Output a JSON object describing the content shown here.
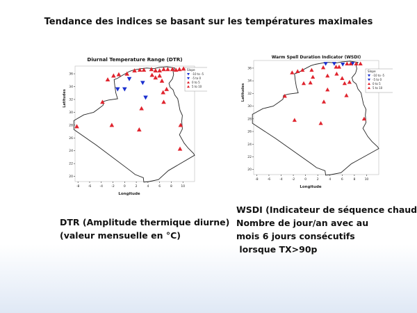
{
  "slide": {
    "title": "Tendance des indices se basant sur les températures maximales"
  },
  "captions": {
    "left": [
      "DTR (Amplitude thermique diurne)",
      "(valeur mensuelle en °C)"
    ],
    "right": [
      "WSDI (Indicateur de séquence chaude)",
      "Nombre de jour/an avec au",
      "mois 6 jours consécutifs",
      " lorsque TX>90p"
    ]
  },
  "colors": {
    "negative": "#1a2fcf",
    "positive": "#e0242e"
  },
  "chart_data": [
    {
      "type": "scatter",
      "title": "Diurnal Temperature Range (DTR)",
      "xlabel": "Longitude",
      "ylabel": "Latitudes",
      "xlim": [
        -8.5,
        12
      ],
      "ylim": [
        19.2,
        37.2
      ],
      "xticks": [
        -8,
        -6,
        -4,
        -2,
        0,
        2,
        4,
        6,
        8,
        10
      ],
      "yticks": [
        20,
        22,
        24,
        26,
        28,
        30,
        32,
        34,
        36
      ],
      "legend": {
        "title": "Slope",
        "entries": [
          "-10 to -5",
          "-5 to 0",
          "0 to 5",
          "5 to 10"
        ]
      },
      "series": [
        {
          "name": "-5 to 0",
          "marker": "triangle-down",
          "points": [
            [
              -1.2,
              33.6
            ],
            [
              0.0,
              33.6
            ],
            [
              0.8,
              35.2
            ],
            [
              3.1,
              34.6
            ],
            [
              3.6,
              32.3
            ]
          ]
        },
        {
          "name": "0 to 5",
          "marker": "triangle-up",
          "points": [
            [
              -2.9,
              35.1
            ],
            [
              -1.9,
              35.7
            ],
            [
              -1.0,
              35.9
            ],
            [
              0.4,
              36.0
            ],
            [
              1.7,
              36.5
            ],
            [
              2.6,
              36.6
            ],
            [
              3.3,
              36.6
            ],
            [
              4.6,
              36.7
            ],
            [
              5.3,
              36.5
            ],
            [
              6.0,
              36.5
            ],
            [
              6.7,
              36.7
            ],
            [
              7.4,
              36.7
            ],
            [
              8.2,
              36.7
            ],
            [
              8.8,
              36.6
            ],
            [
              9.4,
              36.7
            ],
            [
              10.1,
              36.8
            ],
            [
              4.7,
              35.8
            ],
            [
              6.0,
              35.7
            ],
            [
              6.4,
              34.9
            ],
            [
              5.3,
              35.4
            ],
            [
              6.6,
              33.1
            ],
            [
              7.2,
              33.6
            ],
            [
              -3.8,
              31.6
            ],
            [
              2.9,
              30.6
            ],
            [
              6.7,
              31.6
            ],
            [
              -2.2,
              28.0
            ],
            [
              2.5,
              27.3
            ],
            [
              -8.2,
              27.8
            ],
            [
              9.6,
              28.0
            ],
            [
              9.5,
              24.3
            ]
          ]
        }
      ]
    },
    {
      "type": "scatter",
      "title": "Warm Spell Duration Indicator (WSDI)",
      "xlabel": "Longitude",
      "ylabel": "Latitudes",
      "xlim": [
        -8.5,
        12
      ],
      "ylim": [
        19.2,
        37.2
      ],
      "xticks": [
        -8,
        -6,
        -4,
        -2,
        0,
        2,
        4,
        6,
        8,
        10
      ],
      "yticks": [
        20,
        22,
        24,
        26,
        28,
        30,
        32,
        34,
        36
      ],
      "legend": {
        "title": "Slope",
        "entries": [
          "-10 to -5",
          "-5 to 0",
          "0 to 5",
          "5 to 10"
        ]
      },
      "series": [
        {
          "name": "-5 to 0",
          "marker": "triangle-down",
          "points": [
            [
              3.3,
              36.7
            ],
            [
              4.7,
              36.7
            ],
            [
              6.1,
              36.6
            ],
            [
              7.7,
              36.7
            ]
          ]
        },
        {
          "name": "0 to 5",
          "marker": "triangle-up",
          "points": [
            [
              -2.2,
              35.3
            ],
            [
              -1.3,
              35.5
            ],
            [
              -0.5,
              35.7
            ],
            [
              1.0,
              35.7
            ],
            [
              2.9,
              36.1
            ],
            [
              5.0,
              36.2
            ],
            [
              5.5,
              36.2
            ],
            [
              6.8,
              36.7
            ],
            [
              7.4,
              36.7
            ],
            [
              8.3,
              36.7
            ],
            [
              9.0,
              36.7
            ],
            [
              1.2,
              34.6
            ],
            [
              3.6,
              34.8
            ],
            [
              5.1,
              35.1
            ],
            [
              6.0,
              34.4
            ],
            [
              -0.3,
              33.6
            ],
            [
              0.8,
              33.7
            ],
            [
              6.4,
              33.6
            ],
            [
              7.2,
              33.8
            ],
            [
              3.6,
              32.6
            ],
            [
              6.7,
              31.7
            ],
            [
              -3.4,
              31.6
            ],
            [
              3.0,
              30.7
            ],
            [
              -1.8,
              27.8
            ],
            [
              2.5,
              27.3
            ],
            [
              9.6,
              28.0
            ]
          ]
        }
      ]
    }
  ]
}
